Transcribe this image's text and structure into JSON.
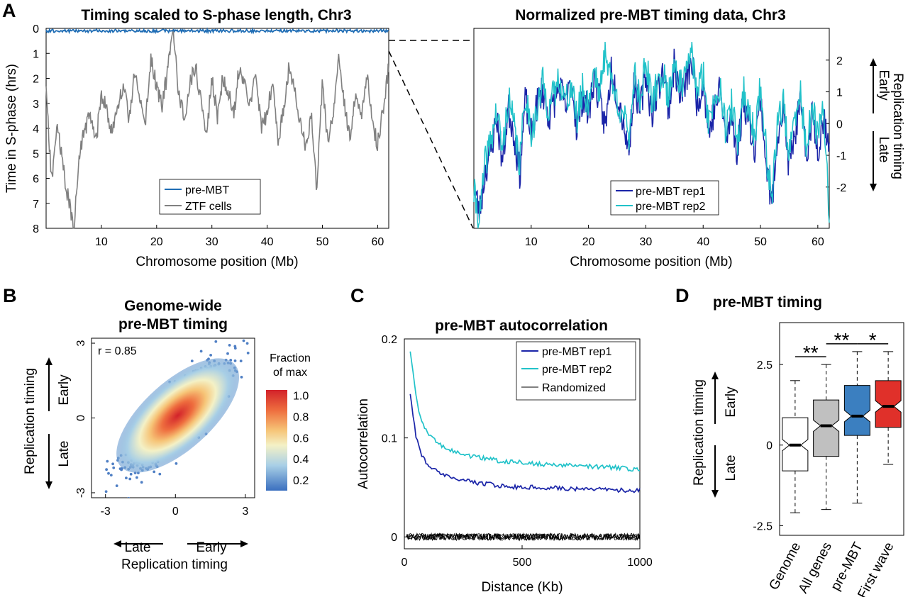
{
  "panel_labels": {
    "a": "A",
    "b": "B",
    "c": "C",
    "d": "D"
  },
  "colors": {
    "pre_mbt": "#1f6db5",
    "ztf": "#808080",
    "rep1": "#1a24a8",
    "rep2": "#21c2c9",
    "random": "#000000",
    "genome_box": "#ffffff",
    "allgenes_box": "#c0c0c0",
    "premb_box": "#3b7fc0",
    "firstwave_box": "#e0302a"
  },
  "chart_data": [
    {
      "id": "A-left",
      "type": "line",
      "title": "Timing scaled to S-phase length, Chr3",
      "xlabel": "Chromosome position (Mb)",
      "ylabel": "Time in S-phase (hrs)",
      "xlim": [
        0,
        62
      ],
      "ylim": [
        8,
        0
      ],
      "y_inverted": true,
      "xticks": [
        "10",
        "20",
        "30",
        "40",
        "50",
        "60"
      ],
      "yticks": [
        "0",
        "1",
        "2",
        "3",
        "4",
        "5",
        "6",
        "7",
        "8"
      ],
      "legend": {
        "position": "bottom-center",
        "entries": [
          "pre-MBT",
          "ZTF cells"
        ]
      },
      "series": [
        {
          "name": "pre-MBT",
          "color": "#1f6db5",
          "approx_value": 0.1
        },
        {
          "name": "ZTF cells",
          "color": "#808080",
          "x": [
            0,
            1,
            2,
            3,
            4,
            5,
            6,
            7,
            8,
            9,
            10,
            11,
            12,
            13,
            14,
            15,
            16,
            17,
            18,
            19,
            20,
            21,
            22,
            23,
            24,
            25,
            26,
            27,
            28,
            29,
            30,
            31,
            32,
            33,
            34,
            35,
            36,
            37,
            38,
            39,
            40,
            41,
            42,
            43,
            44,
            45,
            46,
            47,
            48,
            49,
            50,
            51,
            52,
            53,
            54,
            55,
            56,
            57,
            58,
            59,
            60,
            61,
            62
          ],
          "y": [
            2.5,
            6.2,
            3.8,
            5.5,
            6.8,
            8.0,
            5.2,
            4.0,
            3.5,
            4.6,
            2.6,
            3.3,
            4.2,
            3.0,
            2.4,
            3.6,
            1.8,
            2.9,
            3.7,
            1.2,
            2.3,
            3.1,
            1.7,
            0.1,
            2.6,
            3.7,
            2.2,
            1.5,
            2.8,
            4.3,
            2.0,
            3.5,
            1.9,
            2.6,
            3.4,
            1.4,
            2.4,
            3.0,
            1.8,
            4.1,
            3.3,
            2.2,
            4.6,
            3.1,
            1.5,
            2.4,
            3.9,
            4.8,
            3.3,
            6.5,
            2.2,
            4.6,
            3.5,
            1.2,
            3.0,
            4.4,
            2.6,
            3.5,
            1.8,
            3.8,
            4.6,
            3.2,
            1.5
          ]
        }
      ]
    },
    {
      "id": "A-right",
      "type": "line",
      "title": "Normalized pre-MBT timing data, Chr3",
      "xlabel": "Chromosome position (Mb)",
      "ylabel": "Replication timing",
      "ylabel_top": "Early",
      "ylabel_bottom": "Late",
      "xlim": [
        0,
        62
      ],
      "ylim": [
        -3.3,
        3.0
      ],
      "xticks": [
        "10",
        "20",
        "30",
        "40",
        "50",
        "60"
      ],
      "yticks": [
        "-2",
        "-1",
        "0",
        "1",
        "2"
      ],
      "legend": {
        "position": "bottom-center",
        "entries": [
          "pre-MBT rep1",
          "pre-MBT rep2"
        ]
      },
      "series": [
        {
          "name": "pre-MBT rep1",
          "color": "#1a24a8",
          "x": [
            0,
            1,
            2,
            3,
            4,
            5,
            6,
            7,
            8,
            9,
            10,
            11,
            12,
            13,
            14,
            15,
            16,
            17,
            18,
            19,
            20,
            21,
            22,
            23,
            24,
            25,
            26,
            27,
            28,
            29,
            30,
            31,
            32,
            33,
            34,
            35,
            36,
            37,
            38,
            39,
            40,
            41,
            42,
            43,
            44,
            45,
            46,
            47,
            48,
            49,
            50,
            51,
            52,
            53,
            54,
            55,
            56,
            57,
            58,
            59,
            60,
            61,
            62
          ],
          "y": [
            -2.0,
            -2.8,
            -1.5,
            -0.8,
            0.2,
            -1.2,
            0.5,
            -0.3,
            -1.6,
            0.8,
            -0.4,
            0.6,
            1.1,
            0.2,
            0.7,
            1.2,
            0.4,
            1.4,
            -0.2,
            0.9,
            0.3,
            1.5,
            0.6,
            -0.1,
            1.8,
            0.9,
            0.2,
            -0.9,
            1.3,
            0.4,
            1.6,
            0.3,
            1.0,
            1.7,
            0.5,
            1.9,
            0.8,
            1.3,
            2.0,
            0.6,
            1.4,
            -0.3,
            0.5,
            1.1,
            -0.6,
            0.3,
            -1.0,
            0.8,
            0.1,
            -0.7,
            0.9,
            -1.3,
            -2.6,
            -0.2,
            0.4,
            -1.4,
            -0.3,
            0.6,
            -1.1,
            0.3,
            -0.8,
            0.2,
            -0.5
          ]
        },
        {
          "name": "pre-MBT rep2",
          "color": "#21c2c9",
          "x": [
            0,
            1,
            2,
            3,
            4,
            5,
            6,
            7,
            8,
            9,
            10,
            11,
            12,
            13,
            14,
            15,
            16,
            17,
            18,
            19,
            20,
            21,
            22,
            23,
            24,
            25,
            26,
            27,
            28,
            29,
            30,
            31,
            32,
            33,
            34,
            35,
            36,
            37,
            38,
            39,
            40,
            41,
            42,
            43,
            44,
            45,
            46,
            47,
            48,
            49,
            50,
            51,
            52,
            53,
            54,
            55,
            56,
            57,
            58,
            59,
            60,
            61,
            62
          ],
          "y": [
            -2.2,
            -3.0,
            -1.2,
            -0.5,
            0.4,
            -0.9,
            0.8,
            -0.1,
            -1.3,
            1.0,
            -0.2,
            0.3,
            1.3,
            0.5,
            0.9,
            1.5,
            0.6,
            1.2,
            0.1,
            1.1,
            0.6,
            1.8,
            0.9,
            2.4,
            1.3,
            0.7,
            0.4,
            -0.6,
            1.6,
            0.8,
            2.0,
            0.6,
            1.2,
            1.6,
            0.8,
            2.1,
            1.1,
            1.5,
            2.3,
            0.9,
            1.6,
            0.0,
            0.8,
            1.3,
            -0.3,
            0.6,
            -0.7,
            1.0,
            0.4,
            -0.4,
            1.2,
            -0.9,
            -2.3,
            0.1,
            0.7,
            -1.1,
            0.1,
            0.9,
            -0.8,
            0.5,
            -0.5,
            0.5,
            -2.8
          ]
        }
      ]
    },
    {
      "id": "B",
      "type": "scatter",
      "title": "Genome-wide pre-MBT timing",
      "annotation": "r = 0.85",
      "xlabel": "Replication timing",
      "xlabel_left": "Late",
      "xlabel_right": "Early",
      "ylabel": "Replication timing",
      "ylabel_top": "Early",
      "ylabel_bottom": "Late",
      "xlim": [
        -3.6,
        3.4
      ],
      "ylim": [
        -3.2,
        3.2
      ],
      "xticks": [
        "-3",
        "0",
        "3"
      ],
      "yticks": [
        "-3",
        "0",
        "3"
      ],
      "correlation": 0.85,
      "colorbar": {
        "title": "Fraction of max",
        "ticks": [
          "0.2",
          "0.4",
          "0.6",
          "0.8",
          "1.0"
        ],
        "range": [
          0.1,
          1.05
        ]
      }
    },
    {
      "id": "C",
      "type": "line",
      "title": "pre-MBT autocorrelation",
      "xlabel": "Distance (Kb)",
      "ylabel": "Autocorrelation",
      "xlim": [
        0,
        1000
      ],
      "ylim": [
        -0.012,
        0.2
      ],
      "xticks": [
        "0",
        "500",
        "1000"
      ],
      "yticks": [
        "0",
        "0.1",
        "0.2"
      ],
      "legend": {
        "position": "top-right",
        "entries": [
          "pre-MBT rep1",
          "pre-MBT rep2",
          "Randomized"
        ]
      },
      "series": [
        {
          "name": "pre-MBT rep1",
          "color": "#1a24a8",
          "x": [
            25,
            50,
            75,
            100,
            150,
            200,
            250,
            300,
            400,
            500,
            600,
            700,
            800,
            900,
            1000
          ],
          "y": [
            0.145,
            0.1,
            0.082,
            0.072,
            0.064,
            0.06,
            0.057,
            0.055,
            0.052,
            0.05,
            0.05,
            0.049,
            0.048,
            0.047,
            0.047
          ]
        },
        {
          "name": "pre-MBT rep2",
          "color": "#21c2c9",
          "x": [
            25,
            50,
            75,
            100,
            150,
            200,
            250,
            300,
            400,
            500,
            600,
            700,
            800,
            900,
            1000
          ],
          "y": [
            0.188,
            0.14,
            0.115,
            0.104,
            0.093,
            0.087,
            0.083,
            0.081,
            0.077,
            0.075,
            0.073,
            0.072,
            0.071,
            0.07,
            0.068
          ]
        },
        {
          "name": "Randomized",
          "color": "#000000",
          "approx_value": 0.0
        }
      ]
    },
    {
      "id": "D",
      "type": "box",
      "title": "pre-MBT timing",
      "ylabel": "Replication timing",
      "ylabel_top": "Early",
      "ylabel_bottom": "Late",
      "ylim": [
        -2.8,
        3.8
      ],
      "yticks": [
        "-2.5",
        "0",
        "2.5"
      ],
      "categories": [
        "Genome",
        "All genes",
        "pre-MBT",
        "First wave"
      ],
      "boxes": [
        {
          "name": "Genome",
          "color": "#ffffff",
          "whisker_low": -2.1,
          "q1": -0.8,
          "median": 0.0,
          "q3": 0.85,
          "whisker_high": 2.0
        },
        {
          "name": "All genes",
          "color": "#c0c0c0",
          "whisker_low": -2.0,
          "q1": -0.35,
          "median": 0.6,
          "q3": 1.4,
          "whisker_high": 2.5
        },
        {
          "name": "pre-MBT",
          "color": "#3b7fc0",
          "whisker_low": -1.8,
          "q1": 0.3,
          "median": 0.9,
          "q3": 1.85,
          "whisker_high": 2.9
        },
        {
          "name": "First wave",
          "color": "#e0302a",
          "whisker_low": -0.6,
          "q1": 0.55,
          "median": 1.2,
          "q3": 2.0,
          "whisker_high": 2.9
        }
      ],
      "significance": [
        {
          "pair": [
            "Genome",
            "All genes"
          ],
          "label": "**"
        },
        {
          "pair": [
            "All genes",
            "pre-MBT"
          ],
          "label": "**"
        },
        {
          "pair": [
            "pre-MBT",
            "First wave"
          ],
          "label": "*"
        }
      ]
    }
  ]
}
